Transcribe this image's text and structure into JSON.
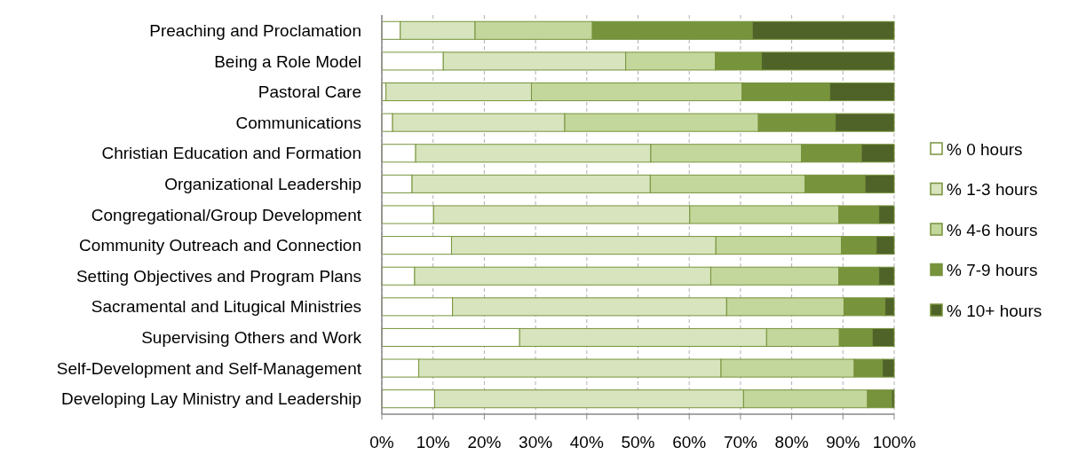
{
  "chart_data": {
    "type": "bar",
    "orientation": "horizontal",
    "stacked": true,
    "categories": [
      "Preaching and Proclamation",
      "Being a Role Model",
      "Pastoral Care",
      "Communications",
      "Christian Education and Formation",
      "Organizational Leadership",
      "Congregational/Group Development",
      "Community Outreach and Connection",
      "Setting Objectives and Program Plans",
      "Sacramental and Litugical Ministries",
      "Supervising Others and Work",
      "Self-Development and Self-Management",
      "Developing Lay Ministry and Leadership"
    ],
    "series": [
      {
        "name": "% 0 hours",
        "color": "#ffffff",
        "values": [
          3.6,
          12.0,
          0.8,
          2.1,
          6.6,
          5.9,
          10.1,
          13.6,
          6.4,
          13.8,
          26.9,
          7.2,
          10.3
        ]
      },
      {
        "name": "% 1-3 hours",
        "color": "#d7e4bd",
        "values": [
          14.6,
          35.6,
          28.4,
          33.6,
          45.9,
          46.5,
          50.0,
          51.6,
          57.8,
          53.5,
          48.2,
          59.0,
          60.3
        ]
      },
      {
        "name": "% 4-6 hours",
        "color": "#c3d69b",
        "values": [
          22.9,
          17.5,
          41.1,
          37.8,
          29.4,
          30.2,
          29.1,
          24.5,
          25.0,
          22.9,
          14.2,
          26.0,
          24.2
        ]
      },
      {
        "name": "% 7-9 hours",
        "color": "#77933c",
        "values": [
          31.2,
          9.0,
          17.1,
          15.0,
          11.7,
          11.7,
          7.8,
          6.8,
          7.8,
          8.0,
          6.4,
          5.5,
          4.7
        ]
      },
      {
        "name": "% 10+ hours",
        "color": "#4f6228",
        "values": [
          27.7,
          25.9,
          12.6,
          11.5,
          6.4,
          5.7,
          3.0,
          3.5,
          3.0,
          1.8,
          4.3,
          2.3,
          0.5
        ]
      }
    ],
    "xlim": [
      0,
      100
    ],
    "xticks": [
      {
        "value": 0,
        "label": "0%"
      },
      {
        "value": 10,
        "label": "10%"
      },
      {
        "value": 20,
        "label": "20%"
      },
      {
        "value": 30,
        "label": "30%"
      },
      {
        "value": 40,
        "label": "40%"
      },
      {
        "value": 50,
        "label": "50%"
      },
      {
        "value": 60,
        "label": "60%"
      },
      {
        "value": 70,
        "label": "70%"
      },
      {
        "value": 80,
        "label": "80%"
      },
      {
        "value": 90,
        "label": "90%"
      },
      {
        "value": 100,
        "label": "100%"
      }
    ],
    "grid": "x",
    "legend": "right"
  }
}
